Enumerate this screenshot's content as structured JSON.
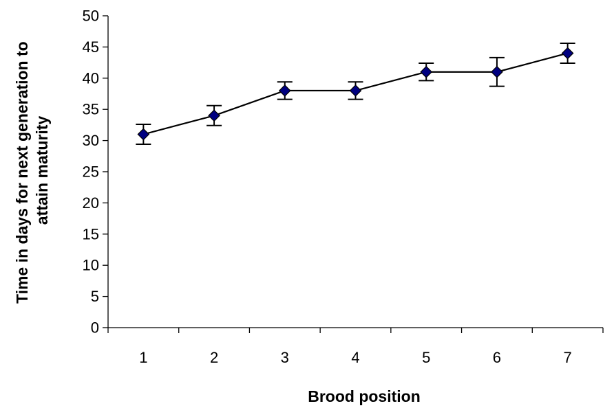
{
  "chart_data": {
    "type": "line",
    "title": "",
    "xlabel": "Brood position",
    "ylabel_lines": [
      "Time in days for next generation to",
      "attain maturity"
    ],
    "x": [
      1,
      2,
      3,
      4,
      5,
      6,
      7
    ],
    "x_tick_labels": [
      "1",
      "2",
      "3",
      "4",
      "5",
      "6",
      "7"
    ],
    "ylim": [
      0,
      50
    ],
    "y_ticks": [
      0,
      5,
      10,
      15,
      20,
      25,
      30,
      35,
      40,
      45,
      50
    ],
    "y_tick_labels": [
      "0",
      "5",
      "10",
      "15",
      "20",
      "25",
      "30",
      "35",
      "40",
      "45",
      "50"
    ],
    "grid": false,
    "legend": "none",
    "series": [
      {
        "values": [
          31,
          34,
          38,
          38,
          41,
          41,
          44
        ],
        "error": [
          1.6,
          1.6,
          1.4,
          1.4,
          1.4,
          2.3,
          1.6
        ],
        "marker": "diamond",
        "marker_color": "#000080",
        "line_color": "#000000"
      }
    ]
  }
}
